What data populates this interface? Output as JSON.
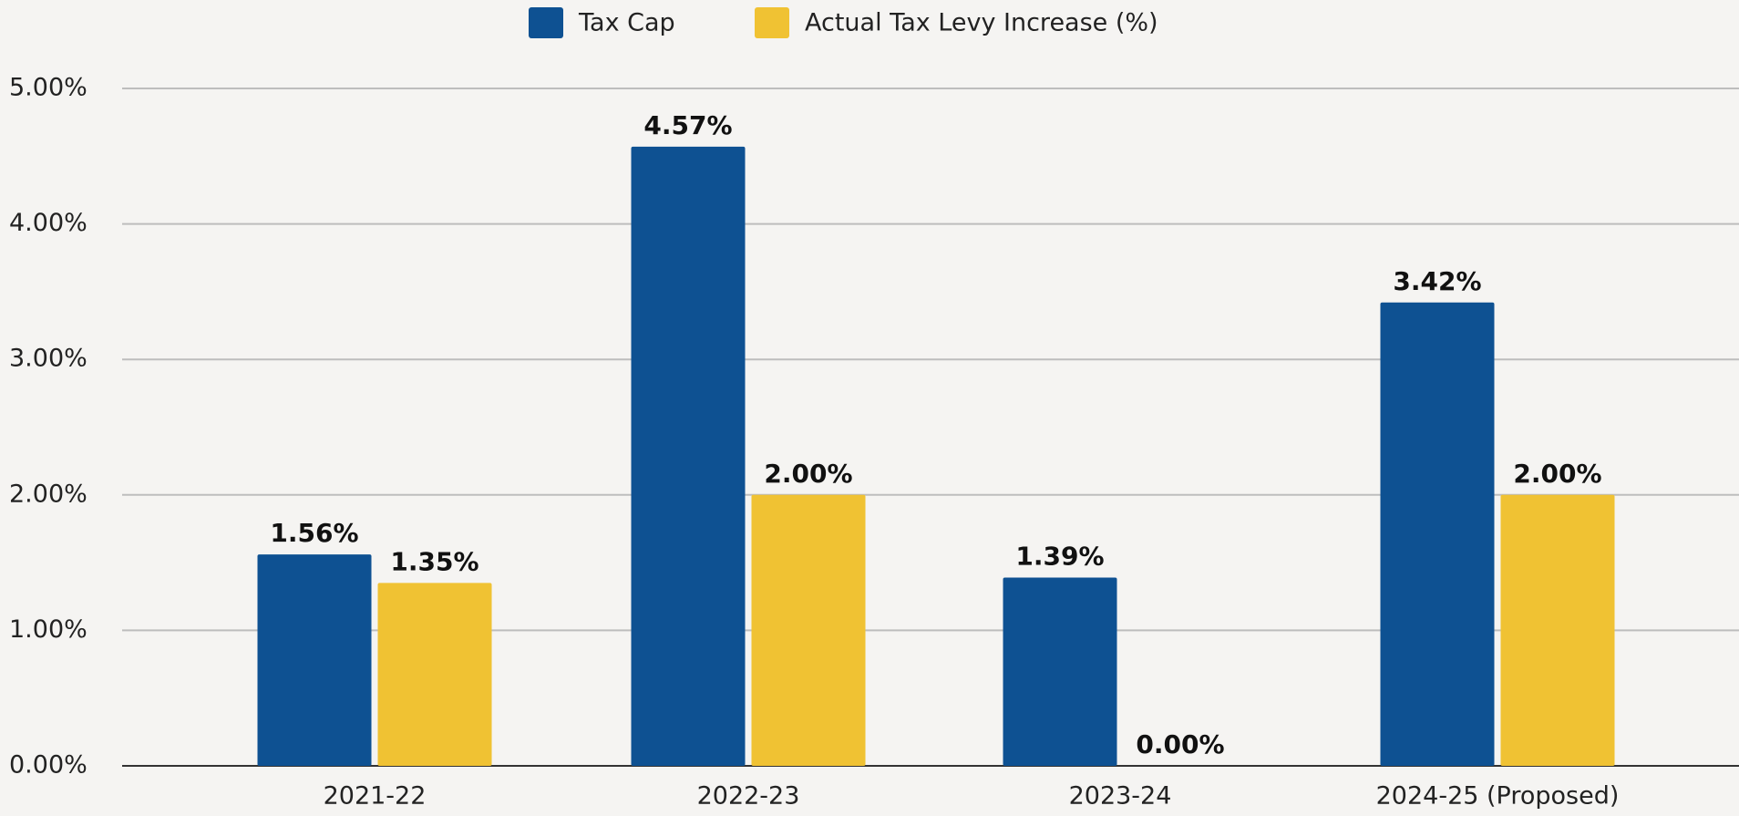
{
  "chart_data": {
    "type": "bar",
    "categories": [
      "2021-22",
      "2022-23",
      "2023-24",
      "2024-25 (Proposed)"
    ],
    "series": [
      {
        "name": "Tax Cap",
        "color": "#0e5192",
        "values": [
          1.56,
          4.57,
          1.39,
          3.42
        ],
        "value_labels": [
          "1.56%",
          "4.57%",
          "1.39%",
          "3.42%"
        ]
      },
      {
        "name": "Actual Tax Levy Increase (%)",
        "color": "#f0c233",
        "values": [
          1.35,
          2.0,
          0.0,
          2.0
        ],
        "value_labels": [
          "1.35%",
          "2.00%",
          "0.00%",
          "2.00%"
        ]
      }
    ],
    "ylim": [
      0,
      5
    ],
    "yticks": [
      {
        "value": 0,
        "label": "0.00%"
      },
      {
        "value": 1,
        "label": "1.00%"
      },
      {
        "value": 2,
        "label": "2.00%"
      },
      {
        "value": 3,
        "label": "3.00%"
      },
      {
        "value": 4,
        "label": "4.00%"
      },
      {
        "value": 5,
        "label": "5.00%"
      }
    ],
    "grid": true,
    "legend": "top"
  }
}
